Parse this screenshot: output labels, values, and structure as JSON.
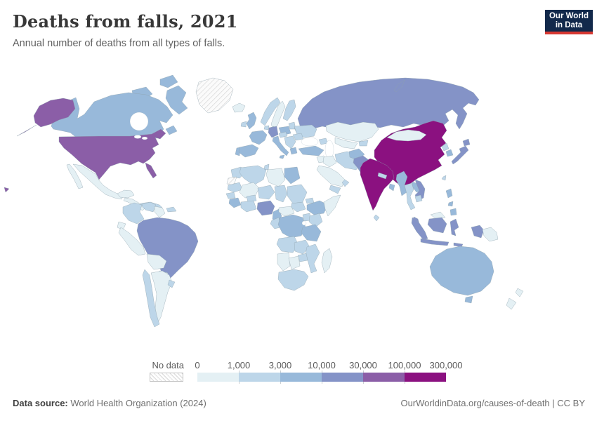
{
  "header": {
    "title": "Deaths from falls, 2021",
    "subtitle": "Annual number of deaths from all types of falls."
  },
  "logo": {
    "line1": "Our World",
    "line2": "in Data",
    "bg_color": "#12294b",
    "accent_color": "#d73832"
  },
  "legend": {
    "no_data_label": "No data"
  },
  "footer": {
    "source_label": "Data source:",
    "source_text": " World Health Organization (2024)",
    "credit_text": "OurWorldinData.org/causes-of-death | CC BY"
  },
  "chart_data": {
    "type": "heatmap",
    "subtype": "choropleth-world-map",
    "title": "Deaths from falls, 2021",
    "unit": "deaths from falls (annual)",
    "bin_edges": [
      "0",
      "1,000",
      "3,000",
      "10,000",
      "30,000",
      "100,000",
      "300,000"
    ],
    "bin_colors": [
      "#e4f0f4",
      "#bdd6e9",
      "#98b9da",
      "#8493c7",
      "#8b5ea7",
      "#8b1180"
    ],
    "no_data_color": "hatched",
    "legend_position": "bottom",
    "countries": [
      {
        "id": "greenland",
        "name": "Greenland",
        "bin": null
      },
      {
        "id": "western_sahara",
        "name": "Western Sahara",
        "bin": null
      },
      {
        "id": "china",
        "name": "China",
        "bin": 5
      },
      {
        "id": "india",
        "name": "India",
        "bin": 5
      },
      {
        "id": "usa",
        "name": "United States",
        "bin": 4
      },
      {
        "id": "russia",
        "name": "Russia",
        "bin": 3
      },
      {
        "id": "brazil",
        "name": "Brazil",
        "bin": 3
      },
      {
        "id": "germany",
        "name": "Germany",
        "bin": 3
      },
      {
        "id": "nigeria",
        "name": "Nigeria",
        "bin": 3
      },
      {
        "id": "pakistan",
        "name": "Pakistan",
        "bin": 3
      },
      {
        "id": "vietnam",
        "name": "Vietnam",
        "bin": 3
      },
      {
        "id": "japan",
        "name": "Japan",
        "bin": 3
      },
      {
        "id": "indonesia",
        "name": "Indonesia",
        "bin": 3
      },
      {
        "id": "malaysia",
        "name": "Malaysia",
        "bin": 3
      },
      {
        "id": "canada",
        "name": "Canada",
        "bin": 2
      },
      {
        "id": "uk",
        "name": "United Kingdom",
        "bin": 2
      },
      {
        "id": "france",
        "name": "France",
        "bin": 2
      },
      {
        "id": "spain",
        "name": "Spain",
        "bin": 2
      },
      {
        "id": "portugal",
        "name": "Portugal",
        "bin": 2
      },
      {
        "id": "italy",
        "name": "Italy",
        "bin": 2
      },
      {
        "id": "poland",
        "name": "Poland",
        "bin": 2
      },
      {
        "id": "greece",
        "name": "Greece",
        "bin": 2
      },
      {
        "id": "turkey",
        "name": "Turkey",
        "bin": 2
      },
      {
        "id": "egypt",
        "name": "Egypt",
        "bin": 2
      },
      {
        "id": "ethiopia",
        "name": "Ethiopia",
        "bin": 2
      },
      {
        "id": "drc",
        "name": "Democratic Republic of Congo",
        "bin": 2
      },
      {
        "id": "tanzania",
        "name": "Tanzania",
        "bin": 2
      },
      {
        "id": "cameroon",
        "name": "Cameroon",
        "bin": 2
      },
      {
        "id": "guinea",
        "name": "Guinea",
        "bin": 2
      },
      {
        "id": "australia",
        "name": "Australia",
        "bin": 2
      },
      {
        "id": "philippines",
        "name": "Philippines",
        "bin": 2
      },
      {
        "id": "myanmar",
        "name": "Myanmar",
        "bin": 2
      },
      {
        "id": "laos",
        "name": "Laos",
        "bin": 2
      },
      {
        "id": "afghanistan",
        "name": "Afghanistan",
        "bin": 2
      },
      {
        "id": "south_korea",
        "name": "South Korea",
        "bin": 2
      },
      {
        "id": "bangladesh",
        "name": "Bangladesh",
        "bin": 2
      },
      {
        "id": "norway",
        "name": "Norway",
        "bin": 1
      },
      {
        "id": "finland",
        "name": "Finland",
        "bin": 1
      },
      {
        "id": "denmark",
        "name": "Denmark",
        "bin": 1
      },
      {
        "id": "ireland",
        "name": "Ireland",
        "bin": 1
      },
      {
        "id": "baltics",
        "name": "Baltic states",
        "bin": 1
      },
      {
        "id": "belarus",
        "name": "Belarus",
        "bin": 1
      },
      {
        "id": "ukraine",
        "name": "Ukraine",
        "bin": 1
      },
      {
        "id": "romania",
        "name": "Romania",
        "bin": 1
      },
      {
        "id": "balkans",
        "name": "Balkans",
        "bin": 1
      },
      {
        "id": "austria_czech",
        "name": "Austria / Czechia",
        "bin": 1
      },
      {
        "id": "benelux",
        "name": "Benelux",
        "bin": 1
      },
      {
        "id": "caucasus",
        "name": "Caucasus",
        "bin": 1
      },
      {
        "id": "colombia",
        "name": "Colombia",
        "bin": 1
      },
      {
        "id": "venezuela",
        "name": "Venezuela",
        "bin": 1
      },
      {
        "id": "cuba",
        "name": "Cuba",
        "bin": 1
      },
      {
        "id": "hispaniola",
        "name": "Hispaniola",
        "bin": 1
      },
      {
        "id": "chile",
        "name": "Chile",
        "bin": 1
      },
      {
        "id": "uruguay",
        "name": "Uruguay",
        "bin": 1
      },
      {
        "id": "iran",
        "name": "Iran",
        "bin": 1
      },
      {
        "id": "yemen",
        "name": "Yemen",
        "bin": 1
      },
      {
        "id": "oman",
        "name": "Oman",
        "bin": 1
      },
      {
        "id": "kyrgyz_tajik",
        "name": "Kyrgyzstan / Tajikistan",
        "bin": 1
      },
      {
        "id": "morocco",
        "name": "Morocco",
        "bin": 1
      },
      {
        "id": "algeria",
        "name": "Algeria",
        "bin": 1
      },
      {
        "id": "tunisia",
        "name": "Tunisia",
        "bin": 1
      },
      {
        "id": "mauritania",
        "name": "Mauritania",
        "bin": 1
      },
      {
        "id": "niger",
        "name": "Niger",
        "bin": 1
      },
      {
        "id": "chad",
        "name": "Chad",
        "bin": 1
      },
      {
        "id": "sudan",
        "name": "Sudan",
        "bin": 1
      },
      {
        "id": "eritrea",
        "name": "Eritrea",
        "bin": 1
      },
      {
        "id": "senegal",
        "name": "Senegal",
        "bin": 1
      },
      {
        "id": "ghana_ivory",
        "name": "Ghana / Ivory Coast",
        "bin": 1
      },
      {
        "id": "burkina",
        "name": "Burkina Faso",
        "bin": 1
      },
      {
        "id": "south_sudan",
        "name": "South Sudan",
        "bin": 1
      },
      {
        "id": "kenya",
        "name": "Kenya",
        "bin": 1
      },
      {
        "id": "uganda",
        "name": "Uganda",
        "bin": 1
      },
      {
        "id": "congo_gabon",
        "name": "Congo / Gabon",
        "bin": 1
      },
      {
        "id": "angola",
        "name": "Angola",
        "bin": 1
      },
      {
        "id": "zambia",
        "name": "Zambia",
        "bin": 1
      },
      {
        "id": "mozambique",
        "name": "Mozambique",
        "bin": 1
      },
      {
        "id": "zimbabwe",
        "name": "Zimbabwe",
        "bin": 1
      },
      {
        "id": "south_africa",
        "name": "South Africa",
        "bin": 1
      },
      {
        "id": "nepal",
        "name": "Nepal",
        "bin": 1
      },
      {
        "id": "sri_lanka",
        "name": "Sri Lanka",
        "bin": 1
      },
      {
        "id": "thailand",
        "name": "Thailand",
        "bin": 1
      },
      {
        "id": "cambodia",
        "name": "Cambodia",
        "bin": 1
      },
      {
        "id": "north_korea",
        "name": "North Korea",
        "bin": 1
      },
      {
        "id": "taiwan",
        "name": "Taiwan",
        "bin": 1
      },
      {
        "id": "mexico",
        "name": "Mexico",
        "bin": 0
      },
      {
        "id": "central_america",
        "name": "Central America",
        "bin": 0
      },
      {
        "id": "guyanas",
        "name": "Guyanas",
        "bin": 0
      },
      {
        "id": "ecuador",
        "name": "Ecuador",
        "bin": 0
      },
      {
        "id": "peru",
        "name": "Peru",
        "bin": 0
      },
      {
        "id": "bolivia",
        "name": "Bolivia",
        "bin": 0
      },
      {
        "id": "paraguay",
        "name": "Paraguay",
        "bin": 0
      },
      {
        "id": "argentina",
        "name": "Argentina",
        "bin": 0
      },
      {
        "id": "iceland",
        "name": "Iceland",
        "bin": 0
      },
      {
        "id": "sweden",
        "name": "Sweden",
        "bin": 0
      },
      {
        "id": "kazakhstan",
        "name": "Kazakhstan",
        "bin": 0
      },
      {
        "id": "central_asia",
        "name": "Uzbekistan / Turkmenistan",
        "bin": 0
      },
      {
        "id": "mongolia",
        "name": "Mongolia",
        "bin": 0
      },
      {
        "id": "saudi_arabia",
        "name": "Saudi Arabia",
        "bin": 0
      },
      {
        "id": "iraq",
        "name": "Iraq",
        "bin": 0
      },
      {
        "id": "syria",
        "name": "Syria / Jordan",
        "bin": 0
      },
      {
        "id": "libya",
        "name": "Libya",
        "bin": 0
      },
      {
        "id": "mali",
        "name": "Mali",
        "bin": 0
      },
      {
        "id": "car",
        "name": "Central African Republic",
        "bin": 0
      },
      {
        "id": "somalia",
        "name": "Somalia",
        "bin": 0
      },
      {
        "id": "namibia",
        "name": "Namibia",
        "bin": 0
      },
      {
        "id": "botswana",
        "name": "Botswana",
        "bin": 0
      },
      {
        "id": "madagascar",
        "name": "Madagascar",
        "bin": 0
      },
      {
        "id": "brunei",
        "name": "Brunei / North Borneo",
        "bin": 0
      },
      {
        "id": "png",
        "name": "Papua New Guinea",
        "bin": 0
      },
      {
        "id": "new_zealand",
        "name": "New Zealand",
        "bin": 0
      }
    ]
  }
}
